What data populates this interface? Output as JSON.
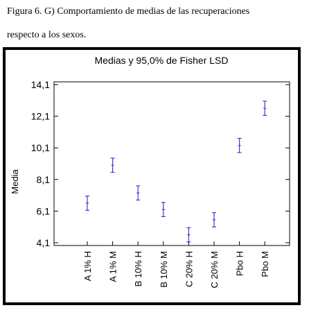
{
  "caption": {
    "line1": "Figura 6. G) Comportamiento de medias de las recuperaciones",
    "line2": "respecto a los sexos."
  },
  "colors": {
    "interval": "#3a3ad8",
    "axis": "#000000"
  },
  "chart_data": {
    "type": "interval",
    "title": "Medias y 95,0% de Fisher LSD",
    "xlabel": "",
    "ylabel": "Media",
    "ylim": [
      4.1,
      14.1
    ],
    "yticks": [
      4.1,
      6.1,
      8.1,
      10.1,
      12.1,
      14.1
    ],
    "ytick_labels": [
      "4,1",
      "6,1",
      "8,1",
      "10,1",
      "12,1",
      "14,1"
    ],
    "grid": false,
    "categories": [
      "A 1% H",
      "A 1% M",
      "B 10% H",
      "B 10% M",
      "C 20% H",
      "C 20% M",
      "Pbo H",
      "Pbo M"
    ],
    "series": [
      {
        "mean": [
          6.6,
          9.0,
          7.25,
          6.2,
          4.6,
          5.55,
          10.25,
          12.6
        ],
        "lower": [
          6.15,
          8.55,
          6.8,
          5.75,
          4.15,
          5.1,
          9.8,
          12.15
        ],
        "upper": [
          7.05,
          9.45,
          7.7,
          6.65,
          5.05,
          6.0,
          10.7,
          13.05
        ]
      }
    ]
  }
}
